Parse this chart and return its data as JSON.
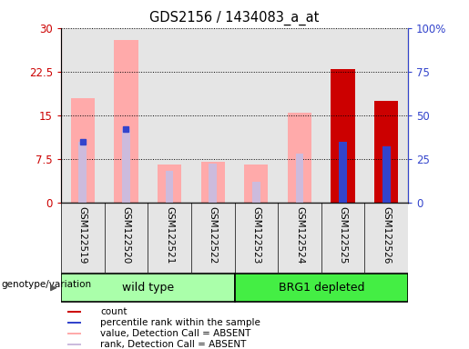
{
  "title": "GDS2156 / 1434083_a_at",
  "samples": [
    "GSM122519",
    "GSM122520",
    "GSM122521",
    "GSM122522",
    "GSM122523",
    "GSM122524",
    "GSM122525",
    "GSM122526"
  ],
  "pink_values": [
    18.0,
    28.0,
    6.5,
    7.0,
    6.5,
    15.5,
    0,
    0
  ],
  "pink_rank_pct": [
    35.0,
    42.0,
    18.0,
    22.0,
    12.0,
    28.0,
    0,
    0
  ],
  "red_values": [
    0,
    0,
    0,
    0,
    0,
    0,
    23.0,
    17.5
  ],
  "blue_pct": [
    0,
    0,
    0,
    0,
    0,
    0,
    35.0,
    32.0
  ],
  "blue_marker_pct": [
    35.0,
    42.0,
    0,
    0,
    0,
    0,
    0,
    0
  ],
  "ylim_left": [
    0,
    30
  ],
  "yticks_left": [
    0,
    7.5,
    15,
    22.5,
    30
  ],
  "ytick_labels_left": [
    "0",
    "7.5",
    "15",
    "22.5",
    "30"
  ],
  "ylim_right": [
    0,
    100
  ],
  "yticks_right": [
    0,
    25,
    50,
    75,
    100
  ],
  "ytick_labels_right": [
    "0",
    "25",
    "50",
    "75",
    "100%"
  ],
  "color_red": "#cc0000",
  "color_blue": "#3344cc",
  "color_pink": "#ffaaaa",
  "color_lavender": "#ccbbdd",
  "color_green_wt": "#aaffaa",
  "color_green_brg": "#44ee44",
  "color_grey_col": "#cccccc",
  "legend_items": [
    "count",
    "percentile rank within the sample",
    "value, Detection Call = ABSENT",
    "rank, Detection Call = ABSENT"
  ],
  "legend_colors": [
    "#cc0000",
    "#3344cc",
    "#ffaaaa",
    "#ccbbdd"
  ],
  "xlabel_genotype": "genotype/variation",
  "wt_label": "wild type",
  "brg_label": "BRG1 depleted",
  "pink_bar_width": 0.55,
  "rank_bar_width": 0.18
}
